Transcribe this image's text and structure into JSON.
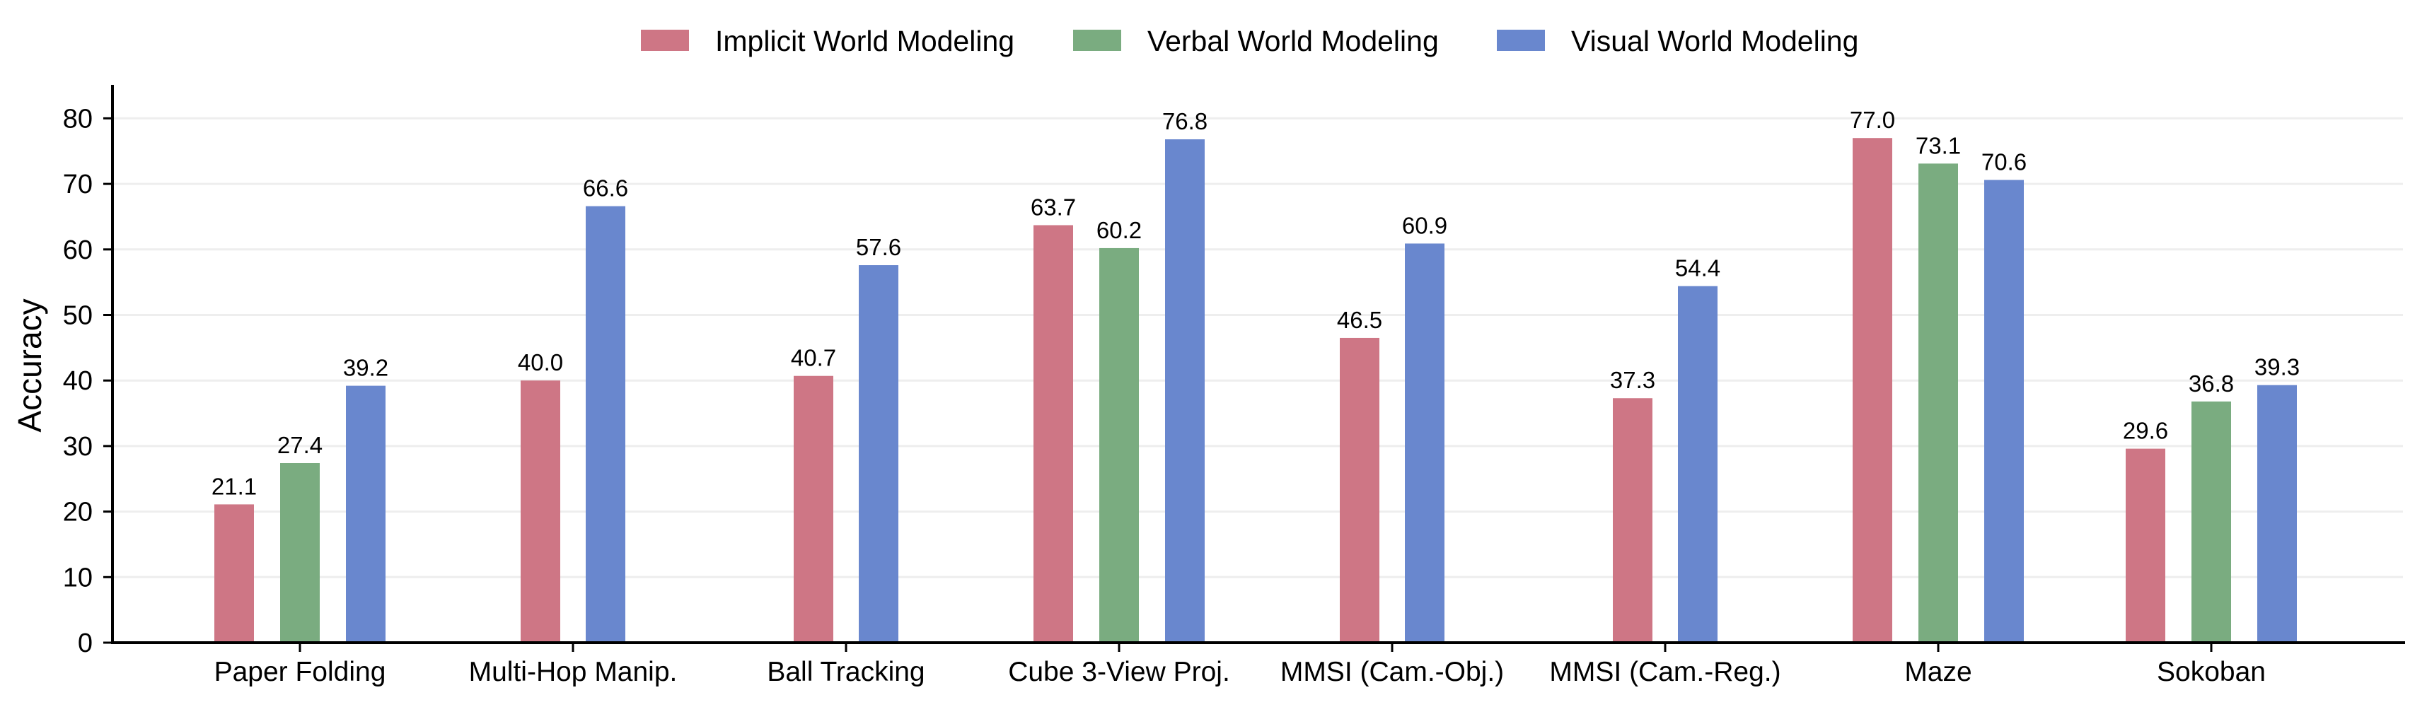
{
  "chart_data": {
    "type": "bar",
    "title": "",
    "xlabel": "",
    "ylabel": "Accuracy",
    "ylim": [
      0,
      85
    ],
    "yticks": [
      0,
      10,
      20,
      30,
      40,
      50,
      60,
      70,
      80
    ],
    "grid": "horizontal",
    "legend_position": "top-center",
    "categories": [
      "Paper Folding",
      "Multi-Hop Manip.",
      "Ball Tracking",
      "Cube 3-View Proj.",
      "MMSI (Cam.-Obj.)",
      "MMSI (Cam.-Reg.)",
      "Maze",
      "Sokoban"
    ],
    "series": [
      {
        "name": "Implicit World Modeling",
        "color": "#ce7685",
        "values": [
          21.1,
          40.0,
          40.7,
          63.7,
          46.5,
          37.3,
          77.0,
          29.6
        ],
        "labels": [
          "21.1",
          "40.0",
          "40.7",
          "63.7",
          "46.5",
          "37.3",
          "77.0",
          "29.6"
        ]
      },
      {
        "name": "Verbal World Modeling",
        "color": "#7aac80",
        "values": [
          27.4,
          null,
          null,
          60.2,
          null,
          null,
          73.1,
          36.8
        ],
        "labels": [
          "27.4",
          null,
          null,
          "60.2",
          null,
          null,
          "73.1",
          "36.8"
        ]
      },
      {
        "name": "Visual World Modeling",
        "color": "#6987ce",
        "values": [
          39.2,
          66.6,
          57.6,
          76.8,
          60.9,
          54.4,
          70.6,
          39.3
        ],
        "labels": [
          "39.2",
          "66.6",
          "57.6",
          "76.8",
          "60.9",
          "54.4",
          "70.6",
          "39.3"
        ]
      }
    ]
  }
}
